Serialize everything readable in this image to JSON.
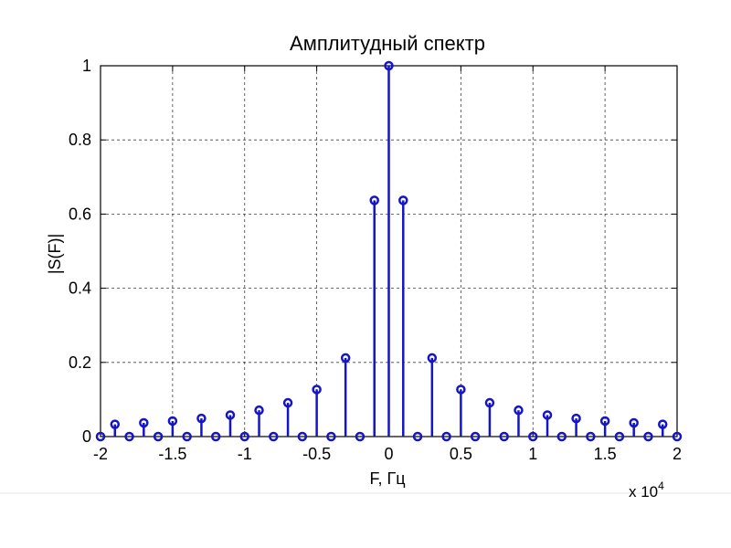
{
  "chart_data": {
    "type": "stem",
    "title": "Амплитудный спектр",
    "xlabel": "F, Гц",
    "ylabel": "|S(F)|",
    "x_scale_note": "x 10",
    "x_scale_exponent": "4",
    "xlim": [
      -2,
      2
    ],
    "ylim": [
      0,
      1
    ],
    "x_ticks": [
      -2,
      -1.5,
      -1,
      -0.5,
      0,
      0.5,
      1,
      1.5,
      2
    ],
    "x_tick_labels": [
      "-2",
      "-1.5",
      "-1",
      "-0.5",
      "0",
      "0.5",
      "1",
      "1.5",
      "2"
    ],
    "y_ticks": [
      0,
      0.2,
      0.4,
      0.6,
      0.8,
      1
    ],
    "y_tick_labels": [
      "0",
      "0.2",
      "0.4",
      "0.6",
      "0.8",
      "1"
    ],
    "grid": true,
    "color": "#1515c8",
    "x": [
      -2,
      -1.9,
      -1.8,
      -1.7,
      -1.6,
      -1.5,
      -1.4,
      -1.3,
      -1.2,
      -1.1,
      -1,
      -0.9,
      -0.8,
      -0.7,
      -0.6,
      -0.5,
      -0.4,
      -0.3,
      -0.2,
      -0.1,
      0,
      0.1,
      0.2,
      0.3,
      0.4,
      0.5,
      0.6,
      0.7,
      0.8,
      0.9,
      1,
      1.1,
      1.2,
      1.3,
      1.4,
      1.5,
      1.6,
      1.7,
      1.8,
      1.9,
      2
    ],
    "values": [
      0,
      0.033,
      0,
      0.037,
      0,
      0.042,
      0,
      0.049,
      0,
      0.058,
      0,
      0.071,
      0,
      0.091,
      0,
      0.127,
      0,
      0.212,
      0,
      0.637,
      1,
      0.637,
      0,
      0.212,
      0,
      0.127,
      0,
      0.091,
      0,
      0.071,
      0,
      0.058,
      0,
      0.049,
      0,
      0.042,
      0,
      0.037,
      0,
      0.033,
      0
    ]
  }
}
